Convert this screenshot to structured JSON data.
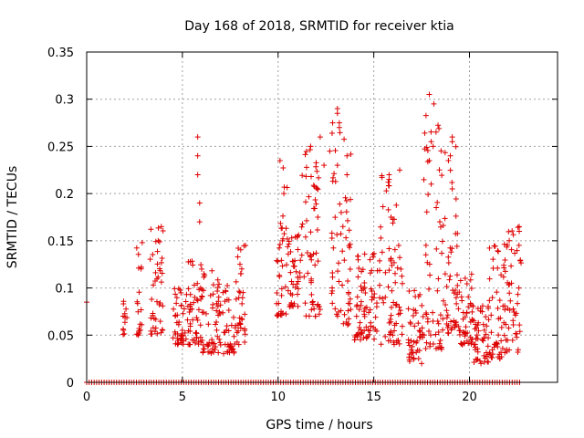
{
  "chart_data": {
    "type": "scatter",
    "title": "Day 168 of 2018, SRMTID for receiver ktia",
    "xlabel": "GPS time / hours",
    "ylabel": "SRMTID / TECUs",
    "xlim": [
      0,
      24.6
    ],
    "ylim": [
      0,
      0.35
    ],
    "xticks": [
      0,
      5,
      10,
      15,
      20
    ],
    "xtick_labels": [
      "0",
      "5",
      "10",
      "15",
      "20"
    ],
    "yticks": [
      0,
      0.05,
      0.1,
      0.15,
      0.2,
      0.25,
      0.3,
      0.35
    ],
    "ytick_labels": [
      "0",
      "0.05",
      "0.1",
      "0.15",
      "0.2",
      "0.25",
      "0.3",
      "0.35"
    ],
    "grid": true,
    "marker": "+",
    "marker_color": "#dd0000",
    "grid_color": "#a0a0a0",
    "series": [
      {
        "name": "SRMTID",
        "zero_baseline_x_range": [
          0,
          22.7
        ],
        "clusters": [
          {
            "x": [
              1.9,
              2.1
            ],
            "y": [
              0.05,
              0.095
            ]
          },
          {
            "x": [
              2.6,
              2.9
            ],
            "y": [
              0.05,
              0.15
            ]
          },
          {
            "x": [
              3.3,
              4.0
            ],
            "y": [
              0.05,
              0.165
            ]
          },
          {
            "x": [
              4.5,
              5.2
            ],
            "y": [
              0.04,
              0.1
            ]
          },
          {
            "x": [
              5.2,
              6.0
            ],
            "y": [
              0.04,
              0.135
            ]
          },
          {
            "x": [
              6.0,
              7.0
            ],
            "y": [
              0.03,
              0.125
            ]
          },
          {
            "x": [
              7.1,
              7.7
            ],
            "y": [
              0.03,
              0.105
            ]
          },
          {
            "x": [
              7.7,
              8.3
            ],
            "y": [
              0.04,
              0.145
            ]
          },
          {
            "x": [
              9.9,
              10.5
            ],
            "y": [
              0.07,
              0.235
            ]
          },
          {
            "x": [
              10.5,
              11.2
            ],
            "y": [
              0.08,
              0.16
            ]
          },
          {
            "x": [
              11.2,
              12.2
            ],
            "y": [
              0.07,
              0.25
            ]
          },
          {
            "x": [
              12.8,
              13.8
            ],
            "y": [
              0.06,
              0.29
            ]
          },
          {
            "x": [
              14.0,
              15.2
            ],
            "y": [
              0.045,
              0.14
            ]
          },
          {
            "x": [
              15.3,
              16.5
            ],
            "y": [
              0.04,
              0.225
            ]
          },
          {
            "x": [
              16.8,
              17.6
            ],
            "y": [
              0.02,
              0.1
            ]
          },
          {
            "x": [
              17.6,
              18.6
            ],
            "y": [
              0.035,
              0.305
            ]
          },
          {
            "x": [
              18.6,
              19.4
            ],
            "y": [
              0.05,
              0.26
            ]
          },
          {
            "x": [
              19.4,
              20.2
            ],
            "y": [
              0.04,
              0.115
            ]
          },
          {
            "x": [
              20.2,
              21.0
            ],
            "y": [
              0.02,
              0.085
            ]
          },
          {
            "x": [
              21.0,
              21.8
            ],
            "y": [
              0.025,
              0.145
            ]
          },
          {
            "x": [
              21.8,
              22.7
            ],
            "y": [
              0.03,
              0.165
            ]
          }
        ],
        "points": [
          [
            0.0,
            0.085
          ],
          [
            2.7,
            0.05
          ],
          [
            5.8,
            0.26
          ],
          [
            5.8,
            0.24
          ],
          [
            5.8,
            0.22
          ],
          [
            5.9,
            0.19
          ],
          [
            5.9,
            0.17
          ],
          [
            3.9,
            0.165
          ],
          [
            2.9,
            0.148
          ],
          [
            8.3,
            0.145
          ],
          [
            10.1,
            0.235
          ],
          [
            10.3,
            0.2
          ],
          [
            11.7,
            0.25
          ],
          [
            12.2,
            0.26
          ],
          [
            12.4,
            0.23
          ],
          [
            12.7,
            0.245
          ],
          [
            13.1,
            0.29
          ],
          [
            13.1,
            0.285
          ],
          [
            13.2,
            0.275
          ],
          [
            13.2,
            0.27
          ],
          [
            13.1,
            0.23
          ],
          [
            13.3,
            0.18
          ],
          [
            13.6,
            0.24
          ],
          [
            13.6,
            0.22
          ],
          [
            14.1,
            0.07
          ],
          [
            14.0,
            0.045
          ],
          [
            15.8,
            0.22
          ],
          [
            15.8,
            0.215
          ],
          [
            15.9,
            0.175
          ],
          [
            16.3,
            0.145
          ],
          [
            17.5,
            0.02
          ],
          [
            17.9,
            0.305
          ],
          [
            18.0,
            0.255
          ],
          [
            18.1,
            0.25
          ],
          [
            17.9,
            0.235
          ],
          [
            18.0,
            0.21
          ],
          [
            18.9,
            0.235
          ],
          [
            19.1,
            0.26
          ],
          [
            19.1,
            0.255
          ],
          [
            19.0,
            0.24
          ],
          [
            19.1,
            0.205
          ],
          [
            22.6,
            0.165
          ],
          [
            22.6,
            0.16
          ],
          [
            20.6,
            0.02
          ]
        ]
      }
    ]
  }
}
